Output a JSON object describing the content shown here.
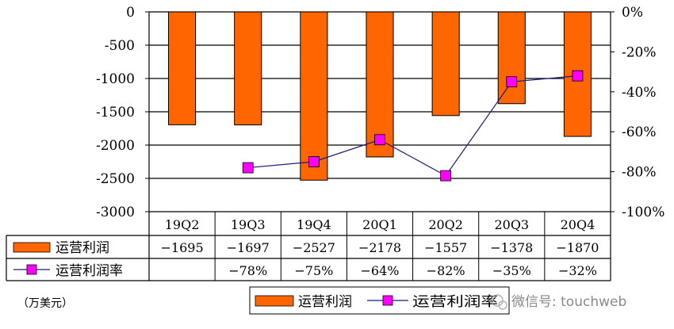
{
  "chart_data": {
    "type": "bar+line",
    "categories": [
      "19Q2",
      "19Q3",
      "19Q4",
      "20Q1",
      "20Q2",
      "20Q3",
      "20Q4"
    ],
    "series": [
      {
        "name": "运营利润",
        "type": "bar",
        "axis": "left",
        "values": [
          -1695,
          -1697,
          -2527,
          -2178,
          -1557,
          -1378,
          -1870
        ],
        "labels": [
          "−1695",
          "−1697",
          "−2527",
          "−2178",
          "−1557",
          "−1378",
          "−1870"
        ]
      },
      {
        "name": "运营利润率",
        "type": "line",
        "axis": "right",
        "values": [
          null,
          -78,
          -75,
          -64,
          -82,
          -35,
          -32
        ],
        "labels": [
          "",
          "−78%",
          "−75%",
          "−64%",
          "−82%",
          "−35%",
          "−32%"
        ]
      }
    ],
    "left_axis": {
      "range": [
        -3000,
        0
      ],
      "ticks": [
        0,
        -500,
        -1000,
        -1500,
        -2000,
        -2500,
        -3000
      ],
      "tick_labels": [
        "0",
        "-500",
        "-1000",
        "-1500",
        "-2000",
        "-2500",
        "-3000"
      ]
    },
    "right_axis": {
      "range": [
        -100,
        0
      ],
      "ticks": [
        0,
        -20,
        -40,
        -60,
        -80,
        -100
      ],
      "tick_labels": [
        "0%",
        "-20%",
        "-40%",
        "-60%",
        "-80%",
        "-100%"
      ]
    },
    "grid": true,
    "data_table": true,
    "unit_note": "（万美元）",
    "legend": {
      "placement": "bottom-right",
      "items": [
        "运营利润",
        "运营利润率"
      ]
    },
    "colors": {
      "bar_fill": "#ff6600",
      "bar_stroke": "#000000",
      "line": "#1a1a7a",
      "marker": "#ff00ff"
    }
  },
  "watermark": {
    "text": "微信号: touchweb",
    "icon": "wechat-icon"
  }
}
